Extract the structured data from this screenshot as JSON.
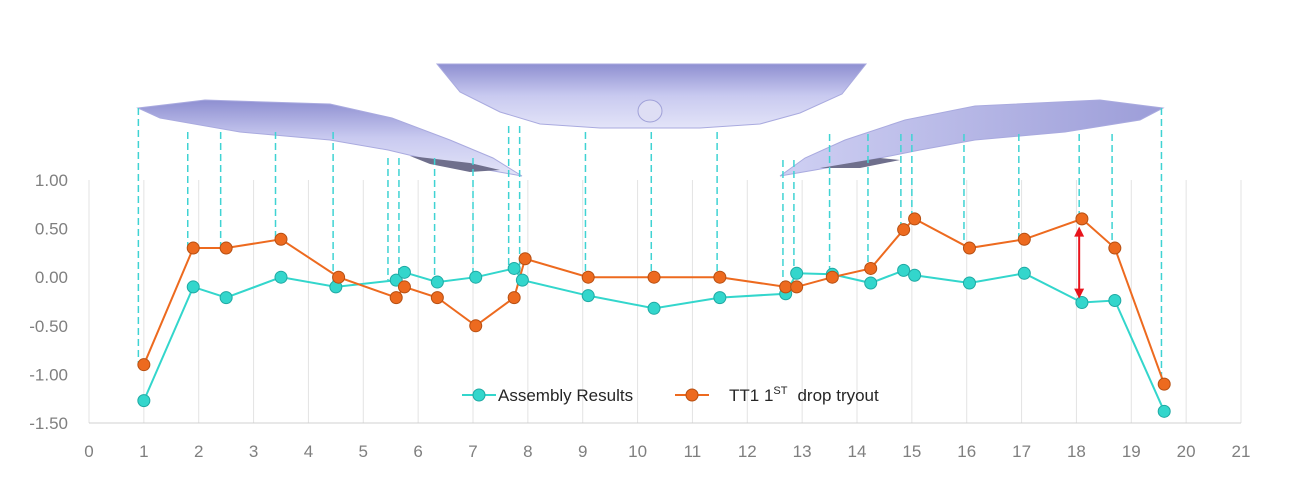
{
  "chart_data": {
    "type": "line",
    "xlim": [
      0,
      21
    ],
    "ylim": [
      -1.5,
      1.0
    ],
    "x_ticks": [
      "0",
      "1",
      "2",
      "3",
      "4",
      "5",
      "6",
      "7",
      "8",
      "9",
      "10",
      "11",
      "12",
      "13",
      "14",
      "15",
      "16",
      "17",
      "18",
      "19",
      "20",
      "21"
    ],
    "y_ticks": [
      "1.00",
      "0.50",
      "0.00",
      "-0.50",
      "-1.00",
      "-1.50"
    ],
    "y_tick_values": [
      1.0,
      0.5,
      0.0,
      -0.5,
      -1.0,
      -1.5
    ],
    "grid": "vertical",
    "legend_position": "bottom-center",
    "series": [
      {
        "name": "Assembly Results",
        "color": "#33d6cc",
        "points": [
          [
            1.0,
            -1.27
          ],
          [
            1.9,
            -0.1
          ],
          [
            2.5,
            -0.21
          ],
          [
            3.5,
            0.0
          ],
          [
            4.5,
            -0.1
          ],
          [
            5.6,
            -0.03
          ],
          [
            5.75,
            0.05
          ],
          [
            6.35,
            -0.05
          ],
          [
            7.05,
            0.0
          ],
          [
            7.75,
            0.09
          ],
          [
            7.9,
            -0.03
          ],
          [
            9.1,
            -0.19
          ],
          [
            10.3,
            -0.32
          ],
          [
            11.5,
            -0.21
          ],
          [
            12.7,
            -0.17
          ],
          [
            12.9,
            0.04
          ],
          [
            13.55,
            0.03
          ],
          [
            14.25,
            -0.06
          ],
          [
            14.85,
            0.07
          ],
          [
            15.05,
            0.02
          ],
          [
            16.05,
            -0.06
          ],
          [
            17.05,
            0.04
          ],
          [
            18.1,
            -0.26
          ],
          [
            18.7,
            -0.24
          ],
          [
            19.6,
            -1.38
          ]
        ]
      },
      {
        "name": "TT1 1ST drop tryout",
        "name_main": "TT1 1",
        "name_sup": "ST",
        "name_tail": "drop tryout",
        "color": "#ed6a1f",
        "points": [
          [
            1.0,
            -0.9
          ],
          [
            1.9,
            0.3
          ],
          [
            2.5,
            0.3
          ],
          [
            3.5,
            0.39
          ],
          [
            4.55,
            0.0
          ],
          [
            5.6,
            -0.21
          ],
          [
            5.75,
            -0.1
          ],
          [
            6.35,
            -0.21
          ],
          [
            7.05,
            -0.5
          ],
          [
            7.75,
            -0.21
          ],
          [
            7.95,
            0.19
          ],
          [
            9.1,
            0.0
          ],
          [
            10.3,
            0.0
          ],
          [
            11.5,
            0.0
          ],
          [
            12.7,
            -0.1
          ],
          [
            12.9,
            -0.1
          ],
          [
            13.55,
            0.0
          ],
          [
            14.25,
            0.09
          ],
          [
            14.85,
            0.49
          ],
          [
            15.05,
            0.6
          ],
          [
            16.05,
            0.3
          ],
          [
            17.05,
            0.39
          ],
          [
            18.1,
            0.6
          ],
          [
            18.7,
            0.3
          ],
          [
            19.6,
            -1.1
          ]
        ]
      }
    ],
    "measurement_guides_x": [
      0.9,
      1.8,
      2.4,
      3.4,
      4.45,
      5.45,
      5.65,
      6.3,
      7.0,
      7.65,
      7.85,
      9.05,
      10.25,
      11.45,
      12.65,
      12.85,
      13.5,
      14.2,
      14.8,
      15.0,
      15.95,
      16.95,
      18.05,
      18.65,
      19.55
    ],
    "highlight_arrow": {
      "x": 18.05,
      "y_from": 0.52,
      "y_to": -0.22,
      "color": "#e8141c"
    },
    "guide_color": "#3fd3d3"
  }
}
